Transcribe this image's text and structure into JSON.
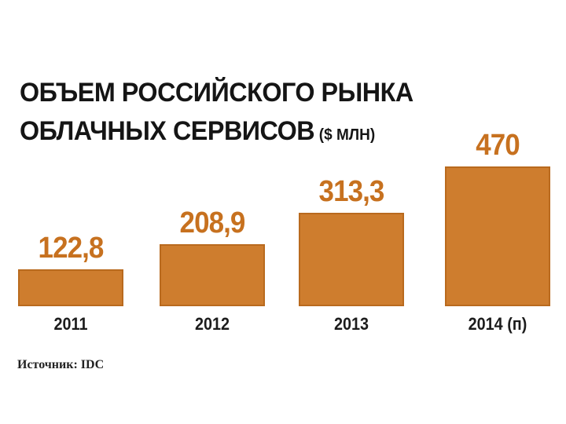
{
  "chart_data": {
    "type": "bar",
    "title": "ОБЪЕМ РОССИЙСКОГО РЫНКА ОБЛАЧНЫХ СЕРВИСОВ",
    "title_lines": [
      "ОБЪЕМ РОССИЙСКОГО РЫНКА",
      "ОБЛАЧНЫХ СЕРВИСОВ"
    ],
    "unit_label": "($ МЛН)",
    "categories": [
      "2011",
      "2012",
      "2013",
      "2014 (п)"
    ],
    "values": [
      122.8,
      208.9,
      313.3,
      470
    ],
    "value_labels": [
      "122,8",
      "208,9",
      "313,3",
      "470"
    ],
    "ylim": [
      0,
      470
    ],
    "xlabel": "",
    "ylabel": "",
    "grid": false,
    "legend": null,
    "source": "Источник: IDC",
    "colors": {
      "bar_fill": "#CE7D2E",
      "bar_border": "#B96A1E",
      "value_label": "#C7711F",
      "title": "#151515",
      "category_label": "#1C1C1C",
      "source_text": "#222222",
      "background": "#FFFFFF"
    }
  }
}
